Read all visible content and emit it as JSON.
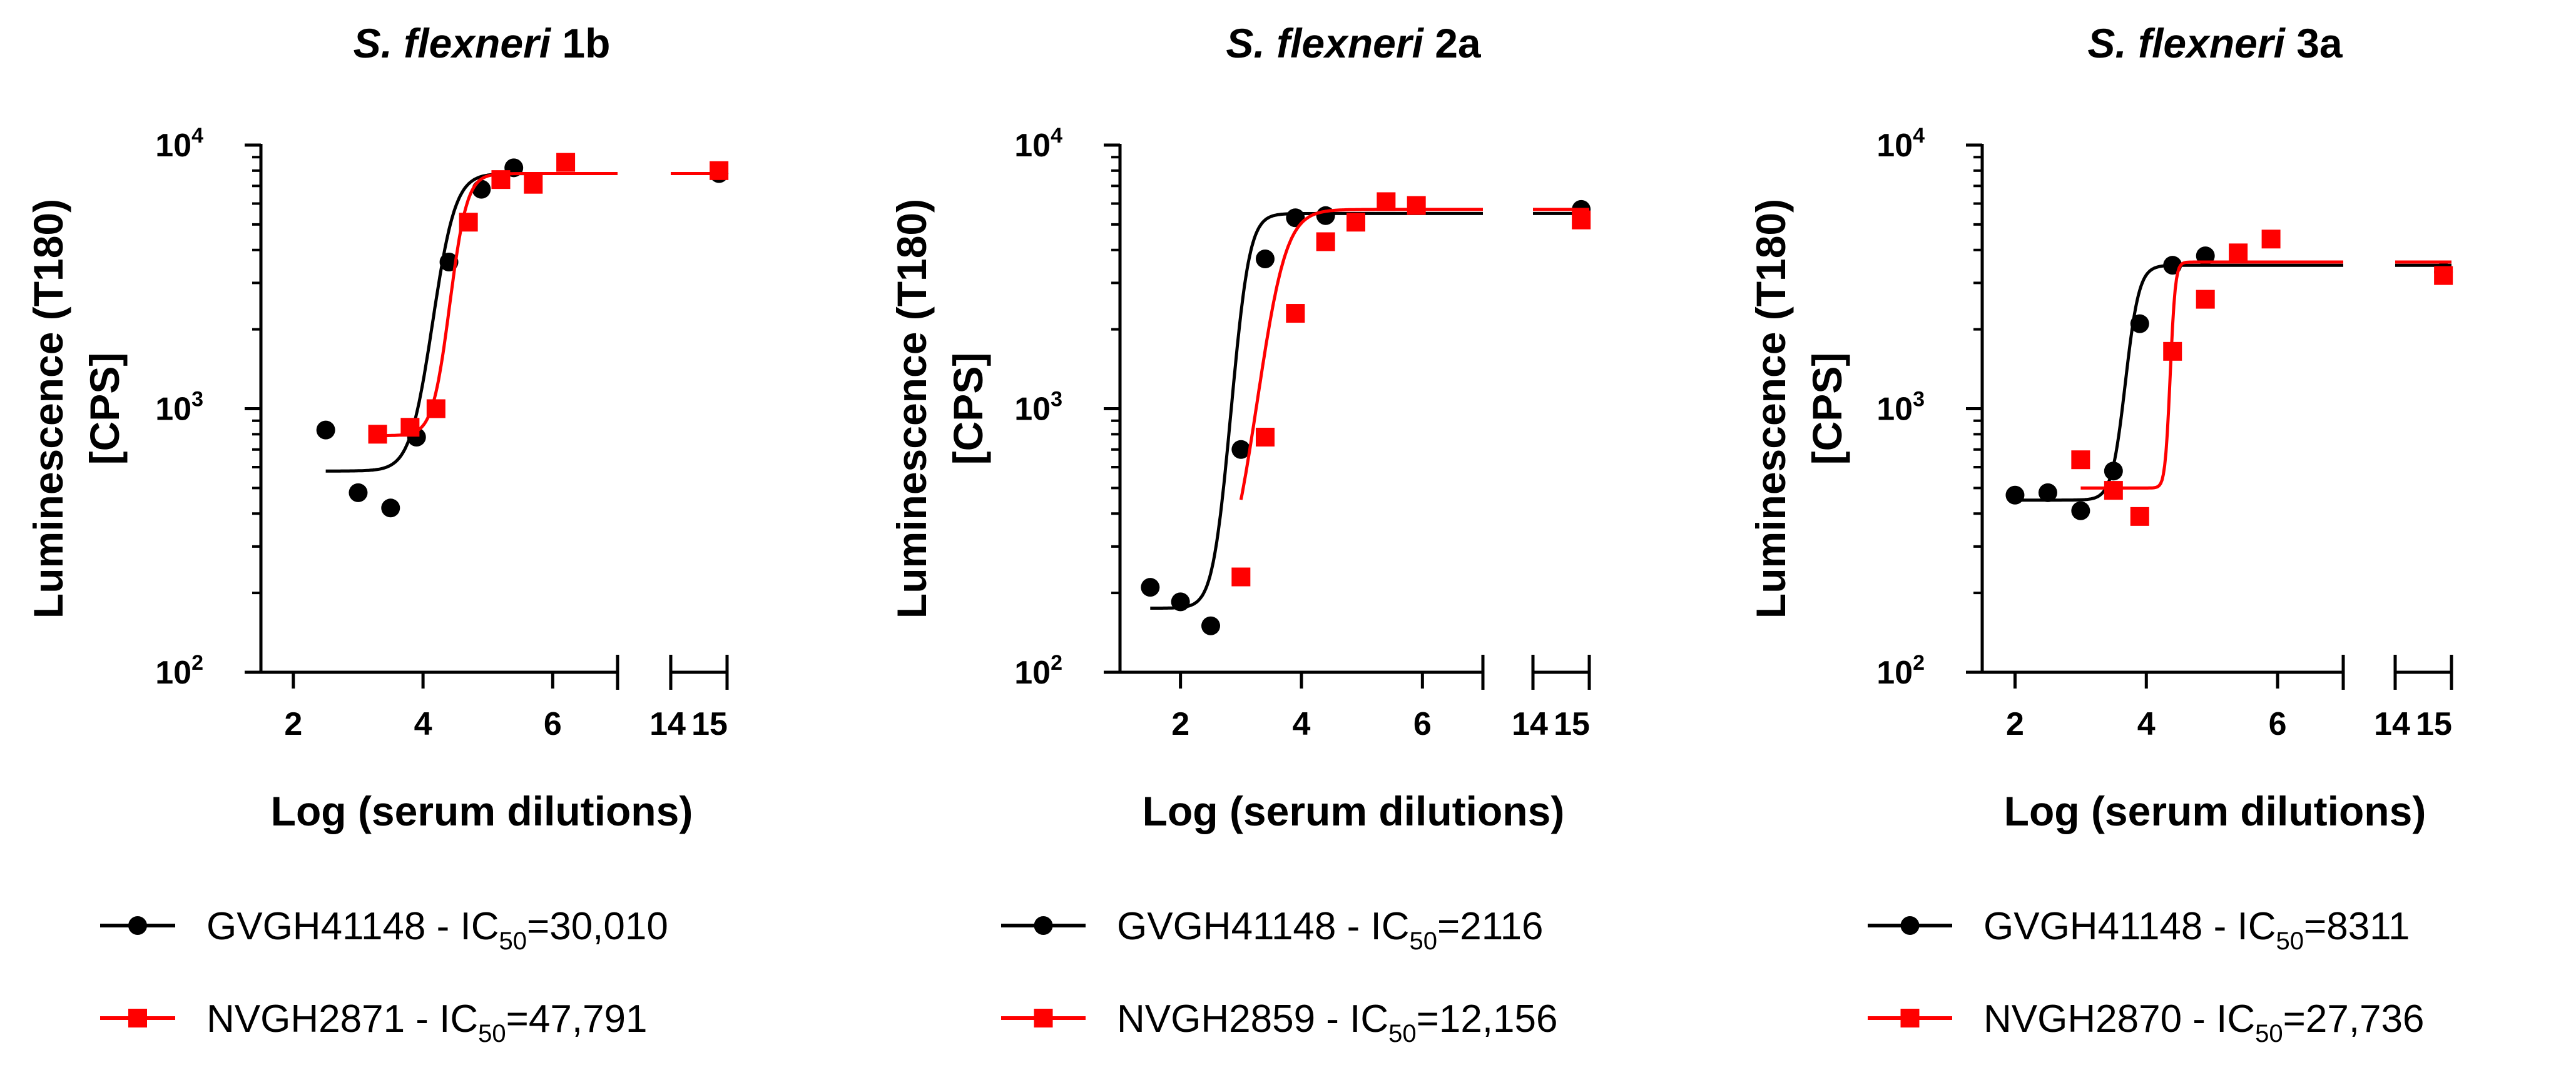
{
  "chart_data": [
    {
      "type": "scatter",
      "title_italic": "S. flexneri",
      "title_rest": "1b",
      "xlabel": "Log (serum dilutions)",
      "ylabel_line1": "Luminescence (T180)",
      "ylabel_line2": "[CPS]",
      "y_scale": "log",
      "ylim": [
        100,
        10000
      ],
      "xlim": [
        1.5,
        15.2
      ],
      "x_axis_break": [
        7,
        13.8
      ],
      "x_ticks": [
        {
          "value": 2,
          "label": "2"
        },
        {
          "value": 4,
          "label": "4"
        },
        {
          "value": 6,
          "label": "6"
        },
        {
          "value": 14,
          "label": "14"
        },
        {
          "value": 15,
          "label": "15"
        }
      ],
      "y_ticks": [
        {
          "value": 100,
          "base": "10",
          "exp": "2"
        },
        {
          "value": 1000,
          "base": "10",
          "exp": "3"
        },
        {
          "value": 10000,
          "base": "10",
          "exp": "4"
        }
      ],
      "legend_placement": "bottom",
      "series": [
        {
          "legend_label": "GVGH41148",
          "legend_suffix_pre": "- IC",
          "legend_suffix_sub": "50",
          "legend_value": "=30,010",
          "color": "#000000",
          "marker": "circle",
          "points": [
            [
              2.5,
              830
            ],
            [
              3.0,
              480
            ],
            [
              3.5,
              420
            ],
            [
              3.9,
              780
            ],
            [
              4.4,
              3600
            ],
            [
              4.9,
              6800
            ],
            [
              5.4,
              8200
            ],
            [
              15.0,
              7800
            ]
          ],
          "fit": {
            "bottom": 580,
            "top": 7800,
            "logIC50": 4.35,
            "hill": 2.8
          }
        },
        {
          "legend_label": "NVGH2871",
          "legend_suffix_pre": "- IC",
          "legend_suffix_sub": "50",
          "legend_value": "=47,791",
          "color": "#ff0000",
          "marker": "square",
          "points": [
            [
              3.3,
              800
            ],
            [
              3.8,
              850
            ],
            [
              4.2,
              1000
            ],
            [
              4.7,
              5100
            ],
            [
              5.2,
              7400
            ],
            [
              5.7,
              7100
            ],
            [
              6.2,
              8600
            ],
            [
              15.0,
              8000
            ]
          ],
          "fit": {
            "bottom": 790,
            "top": 7800,
            "logIC50": 4.55,
            "hill": 3.6
          }
        }
      ]
    },
    {
      "type": "scatter",
      "title_italic": "S. flexneri",
      "title_rest": "2a",
      "xlabel": "Log (serum dilutions)",
      "ylabel_line1": "Luminescence (T180)",
      "ylabel_line2": "[CPS]",
      "y_scale": "log",
      "ylim": [
        100,
        10000
      ],
      "xlim": [
        1.0,
        14.2
      ],
      "x_axis_break": [
        7,
        12.8
      ],
      "x_ticks": [
        {
          "value": 2,
          "label": "2"
        },
        {
          "value": 4,
          "label": "4"
        },
        {
          "value": 6,
          "label": "6"
        },
        {
          "value": 14,
          "label": "14"
        },
        {
          "value": 15,
          "label": "15"
        }
      ],
      "y_ticks": [
        {
          "value": 100,
          "base": "10",
          "exp": "2"
        },
        {
          "value": 1000,
          "base": "10",
          "exp": "3"
        },
        {
          "value": 10000,
          "base": "10",
          "exp": "4"
        }
      ],
      "legend_placement": "bottom",
      "series": [
        {
          "legend_label": "GVGH41148",
          "legend_suffix_pre": "- IC",
          "legend_suffix_sub": "50",
          "legend_value": "=2116",
          "color": "#000000",
          "marker": "circle",
          "points": [
            [
              1.5,
              210
            ],
            [
              2.0,
              185
            ],
            [
              2.5,
              150
            ],
            [
              3.0,
              700
            ],
            [
              3.4,
              3700
            ],
            [
              3.9,
              5300
            ],
            [
              4.4,
              5400
            ],
            [
              14.0,
              5700
            ]
          ],
          "fit": {
            "bottom": 175,
            "top": 5500,
            "logIC50": 3.05,
            "hill": 3.5
          }
        },
        {
          "legend_label": "NVGH2859",
          "legend_suffix_pre": "- IC",
          "legend_suffix_sub": "50",
          "legend_value": "=12,156",
          "color": "#ff0000",
          "marker": "square",
          "points": [
            [
              3.0,
              230
            ],
            [
              3.4,
              780
            ],
            [
              3.9,
              2300
            ],
            [
              4.4,
              4300
            ],
            [
              4.9,
              5100
            ],
            [
              5.4,
              6100
            ],
            [
              5.9,
              5900
            ],
            [
              14.0,
              5200
            ]
          ],
          "fit": {
            "bottom": 200,
            "top": 5700,
            "logIC50": 3.6,
            "hill": 2.2
          }
        }
      ]
    },
    {
      "type": "scatter",
      "title_italic": "S. flexneri",
      "title_rest": "3a",
      "xlabel": "Log (serum dilutions)",
      "ylabel_line1": "Luminescence (T180)",
      "ylabel_line2": "[CPS]",
      "y_scale": "log",
      "ylim": [
        100,
        10000
      ],
      "xlim": [
        1.5,
        14.2
      ],
      "x_axis_break": [
        7,
        12.8
      ],
      "x_ticks": [
        {
          "value": 2,
          "label": "2"
        },
        {
          "value": 4,
          "label": "4"
        },
        {
          "value": 6,
          "label": "6"
        },
        {
          "value": 14,
          "label": "14"
        },
        {
          "value": 15,
          "label": "15"
        }
      ],
      "y_ticks": [
        {
          "value": 100,
          "base": "10",
          "exp": "2"
        },
        {
          "value": 1000,
          "base": "10",
          "exp": "3"
        },
        {
          "value": 10000,
          "base": "10",
          "exp": "4"
        }
      ],
      "legend_placement": "bottom",
      "series": [
        {
          "legend_label": "GVGH41148",
          "legend_suffix_pre": "- IC",
          "legend_suffix_sub": "50",
          "legend_value": "=8311",
          "color": "#000000",
          "marker": "circle",
          "points": [
            [
              2.0,
              470
            ],
            [
              2.5,
              480
            ],
            [
              3.0,
              410
            ],
            [
              3.5,
              580
            ],
            [
              3.9,
              2100
            ],
            [
              4.4,
              3500
            ],
            [
              4.9,
              3800
            ],
            [
              14.0,
              3300
            ]
          ],
          "fit": {
            "bottom": 450,
            "top": 3500,
            "logIC50": 3.78,
            "hill": 4.5
          }
        },
        {
          "legend_label": "NVGH2870",
          "legend_suffix_pre": "- IC",
          "legend_suffix_sub": "50",
          "legend_value": "=27,736",
          "color": "#ff0000",
          "marker": "square",
          "points": [
            [
              3.0,
              640
            ],
            [
              3.5,
              490
            ],
            [
              3.9,
              390
            ],
            [
              4.4,
              1650
            ],
            [
              4.9,
              2600
            ],
            [
              5.4,
              3900
            ],
            [
              5.9,
              4400
            ],
            [
              14.0,
              3200
            ]
          ],
          "fit": {
            "bottom": 500,
            "top": 3600,
            "logIC50": 4.4,
            "hill": 12
          }
        }
      ]
    }
  ]
}
